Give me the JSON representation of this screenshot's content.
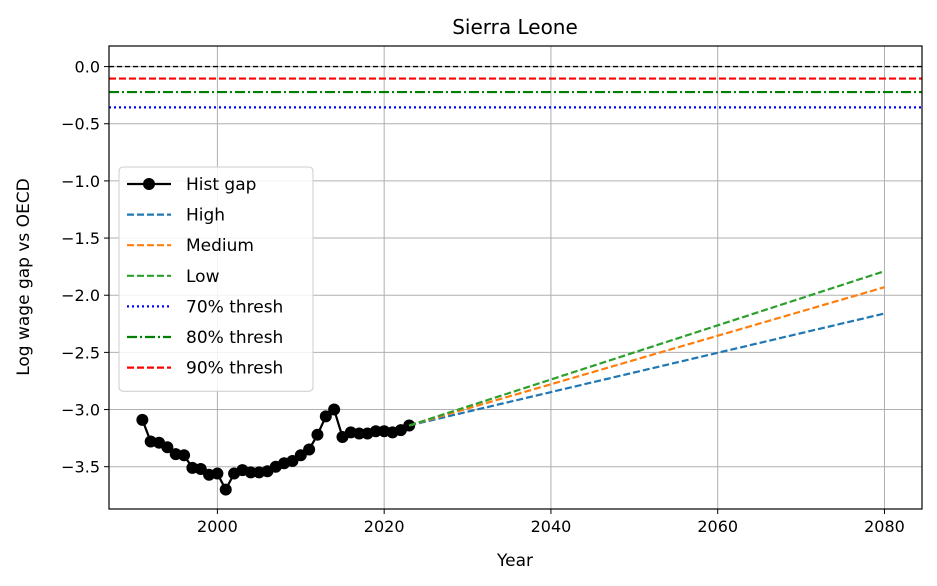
{
  "chart_data": {
    "type": "line",
    "title": "Sierra Leone",
    "xlabel": "Year",
    "ylabel": "Log wage gap vs OECD",
    "xlim": [
      1987,
      2084.5
    ],
    "ylim": [
      -3.87,
      0.18
    ],
    "x_ticks": [
      2000,
      2020,
      2040,
      2060,
      2080
    ],
    "y_ticks": [
      0.0,
      -0.5,
      -1.0,
      -1.5,
      -2.0,
      -2.5,
      -3.0,
      -3.5
    ],
    "x_tick_labels": [
      "2000",
      "2020",
      "2040",
      "2060",
      "2080"
    ],
    "y_tick_labels": [
      "0.0",
      "−0.5",
      "−1.0",
      "−1.5",
      "−2.0",
      "−2.5",
      "−3.0",
      "−3.5"
    ],
    "grid": true,
    "legend_position": "center-left",
    "zero_line": {
      "y": 0.0,
      "color": "#000000",
      "style": "dashed"
    },
    "series": [
      {
        "name": "Hist gap",
        "color": "#000000",
        "style": "solid",
        "marker": "circle",
        "x": [
          1991,
          1992,
          1993,
          1994,
          1995,
          1996,
          1997,
          1998,
          1999,
          2000,
          2001,
          2002,
          2003,
          2004,
          2005,
          2006,
          2007,
          2008,
          2009,
          2010,
          2011,
          2012,
          2013,
          2014,
          2015,
          2016,
          2017,
          2018,
          2019,
          2020,
          2021,
          2022,
          2023
        ],
        "y": [
          -3.09,
          -3.28,
          -3.29,
          -3.33,
          -3.39,
          -3.4,
          -3.51,
          -3.52,
          -3.57,
          -3.56,
          -3.7,
          -3.56,
          -3.53,
          -3.55,
          -3.55,
          -3.54,
          -3.5,
          -3.47,
          -3.45,
          -3.4,
          -3.35,
          -3.22,
          -3.06,
          -3.0,
          -3.24,
          -3.2,
          -3.21,
          -3.21,
          -3.19,
          -3.19,
          -3.2,
          -3.18,
          -3.14
        ]
      },
      {
        "name": "High",
        "color": "#1f77b4",
        "style": "dashed",
        "x": [
          2023,
          2080
        ],
        "y": [
          -3.14,
          -2.16
        ]
      },
      {
        "name": "Medium",
        "color": "#ff7f0e",
        "style": "dashed",
        "x": [
          2023,
          2080
        ],
        "y": [
          -3.14,
          -1.93
        ]
      },
      {
        "name": "Low",
        "color": "#2ca02c",
        "style": "dashed",
        "x": [
          2023,
          2080
        ],
        "y": [
          -3.14,
          -1.79
        ]
      },
      {
        "name": "70% thresh",
        "color": "#0000ff",
        "style": "dotted",
        "hline": -0.357
      },
      {
        "name": "80% thresh",
        "color": "#008000",
        "style": "dashdot",
        "hline": -0.223
      },
      {
        "name": "90% thresh",
        "color": "#ff0000",
        "style": "dashed",
        "hline": -0.105
      }
    ]
  }
}
